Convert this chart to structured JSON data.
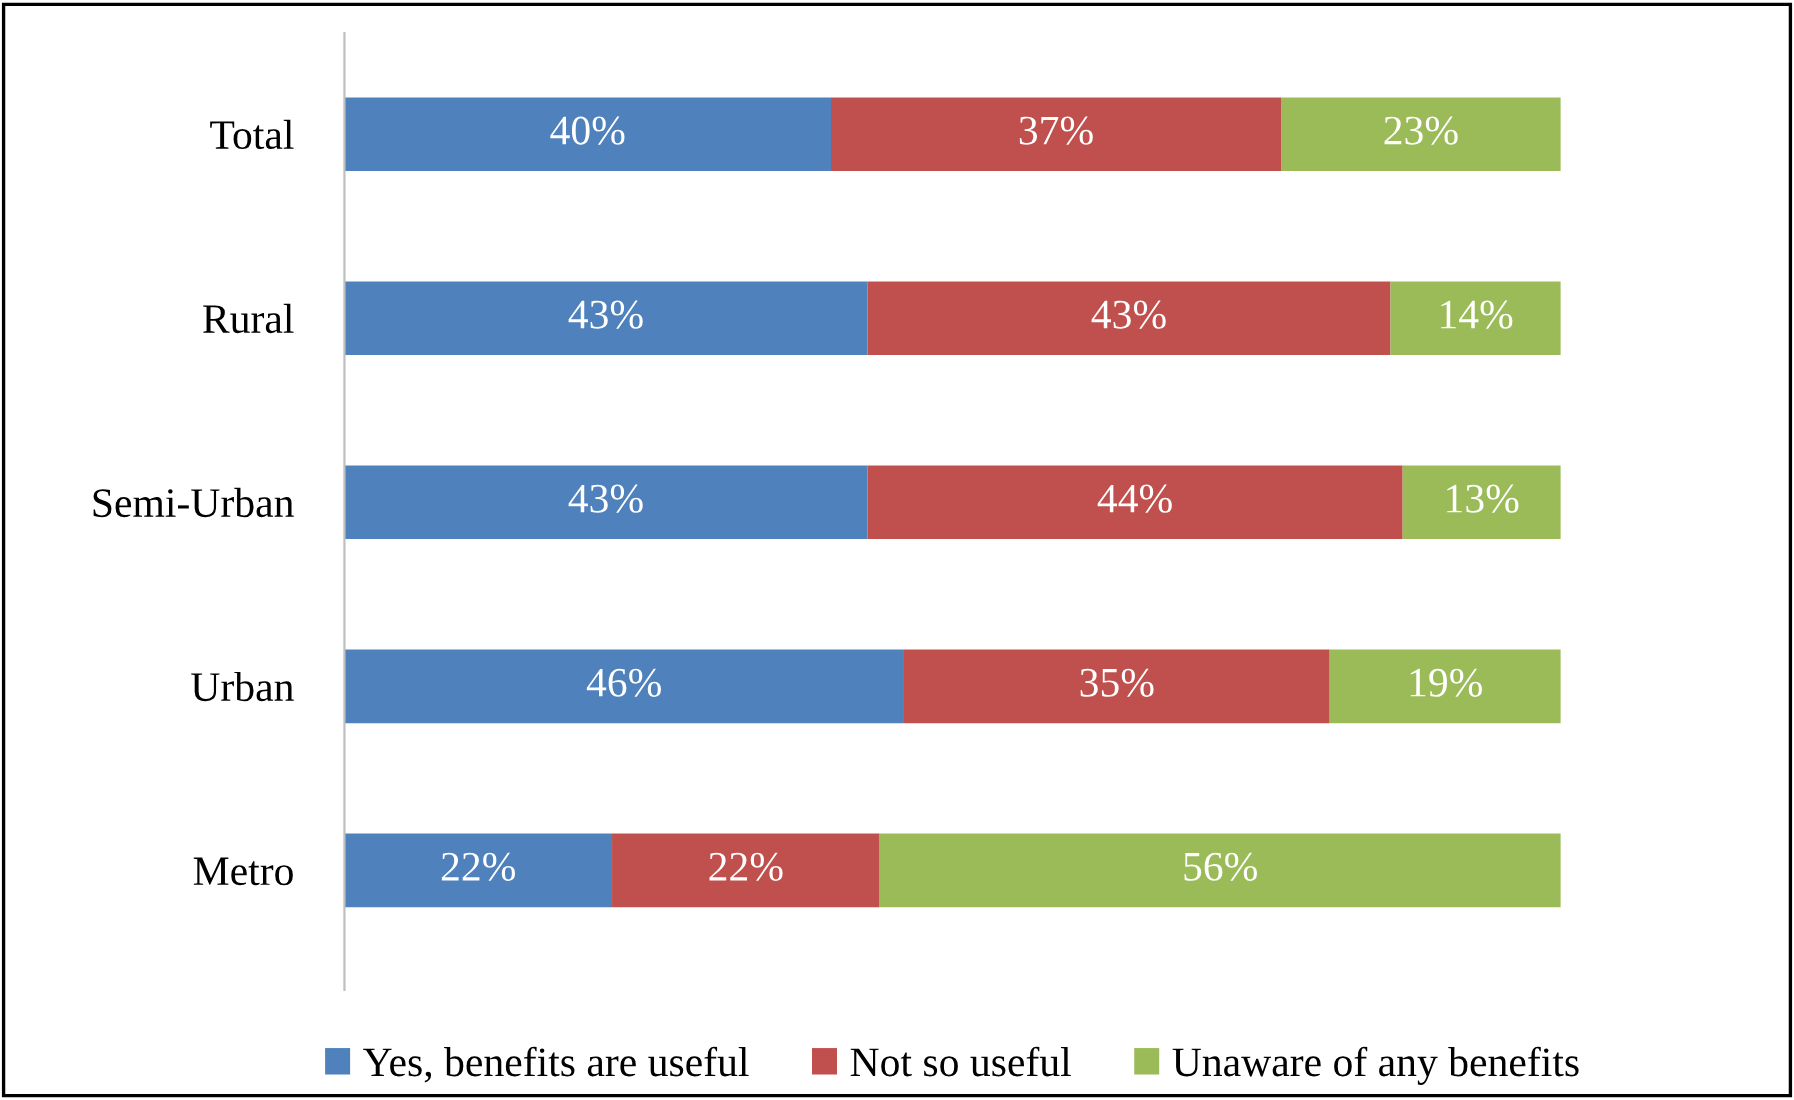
{
  "chart_data": {
    "type": "bar",
    "orientation": "horizontal",
    "stacked": true,
    "categories": [
      "Total",
      "Rural",
      "Semi-Urban",
      "Urban",
      "Metro"
    ],
    "series": [
      {
        "name": "Yes, benefits are useful",
        "color": "#4f81bd",
        "values": [
          40,
          43,
          43,
          46,
          22
        ],
        "value_labels": [
          "40%",
          "43%",
          "43%",
          "46%",
          "22%"
        ]
      },
      {
        "name": "Not so useful",
        "color": "#c0504d",
        "values": [
          37,
          43,
          44,
          35,
          22
        ],
        "value_labels": [
          "37%",
          "43%",
          "44%",
          "35%",
          "22%"
        ]
      },
      {
        "name": "Unaware of any benefits",
        "color": "#9bbb59",
        "values": [
          23,
          14,
          13,
          19,
          56
        ],
        "value_labels": [
          "23%",
          "14%",
          "13%",
          "19%",
          "56%"
        ]
      }
    ],
    "xlim": [
      0,
      100
    ],
    "tick_labels": "y",
    "grid": false,
    "legend": "bottom"
  }
}
